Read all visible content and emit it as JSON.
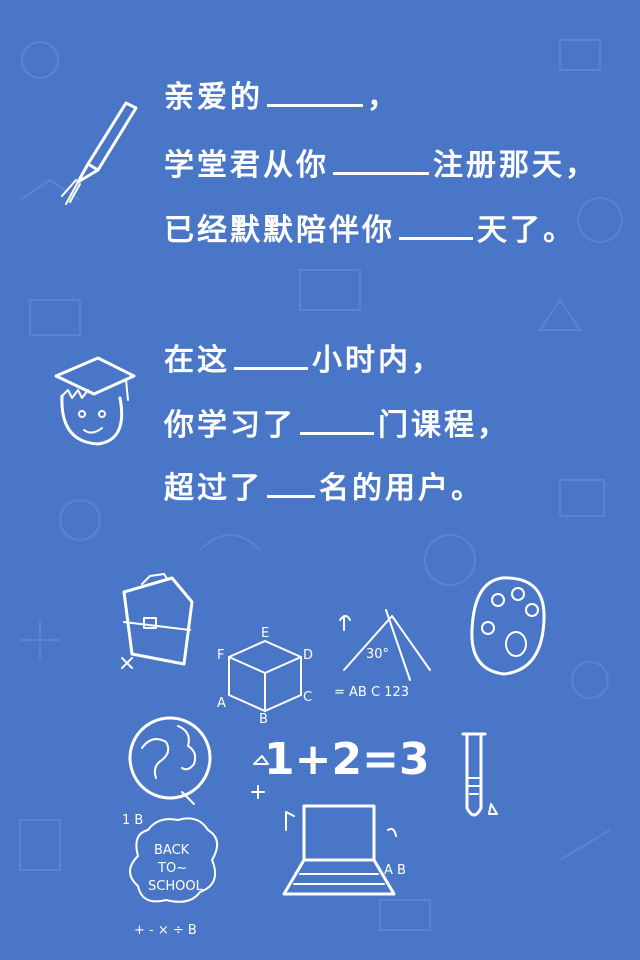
{
  "letter": {
    "p1_l1_a": "亲爱的",
    "p1_l1_b": "，",
    "p1_l2_a": "学堂君从你",
    "p1_l2_b": "注册那天，",
    "p1_l3_a": "已经默默陪伴你",
    "p1_l3_b": "天了。",
    "p2_l1_a": "在这",
    "p2_l1_b": "小时内，",
    "p2_l2_a": "你学习了",
    "p2_l2_b": "门课程，",
    "p2_l3_a": "超过了",
    "p2_l3_b": "名的用户。"
  },
  "doodles": {
    "cube_labels": [
      "E",
      "F",
      "D",
      "A",
      "C",
      "B"
    ],
    "triangle_label": "30°",
    "triangle_caption": "= AB C 123",
    "equation": "1+2=3",
    "school_sign": [
      "BACK",
      "TO~",
      "SCHOOL"
    ],
    "laptop_label": "A B",
    "note_label": "1 B",
    "math_signs": "+ - × ÷ B"
  },
  "colors": {
    "background": "#4a76c7",
    "ink": "#ffffff"
  }
}
